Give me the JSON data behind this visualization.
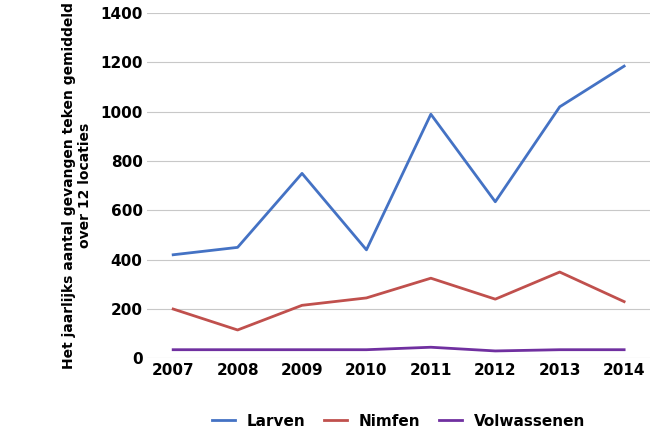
{
  "years": [
    2007,
    2008,
    2009,
    2010,
    2011,
    2012,
    2013,
    2014
  ],
  "larven": [
    420,
    450,
    750,
    440,
    990,
    635,
    1020,
    1185
  ],
  "nimfen": [
    200,
    115,
    215,
    245,
    325,
    240,
    350,
    230
  ],
  "volwassenen": [
    35,
    35,
    35,
    35,
    45,
    30,
    35,
    35
  ],
  "larven_color": "#4472C4",
  "nimfen_color": "#C0504D",
  "volwassenen_color": "#7030A0",
  "ylabel_line1": "Het jaarlijks aantal gevangen teken gemiddeld",
  "ylabel_line2": "over 12 locaties",
  "ylim": [
    0,
    1400
  ],
  "yticks": [
    0,
    200,
    400,
    600,
    800,
    1000,
    1200,
    1400
  ],
  "legend_labels": [
    "Larven",
    "Nimfen",
    "Volwassenen"
  ],
  "background_color": "#ffffff",
  "plot_bg_color": "#ffffff",
  "grid_color": "#c8c8c8",
  "line_width": 2.0,
  "tick_fontsize": 11,
  "ylabel_fontsize": 10,
  "legend_fontsize": 11
}
